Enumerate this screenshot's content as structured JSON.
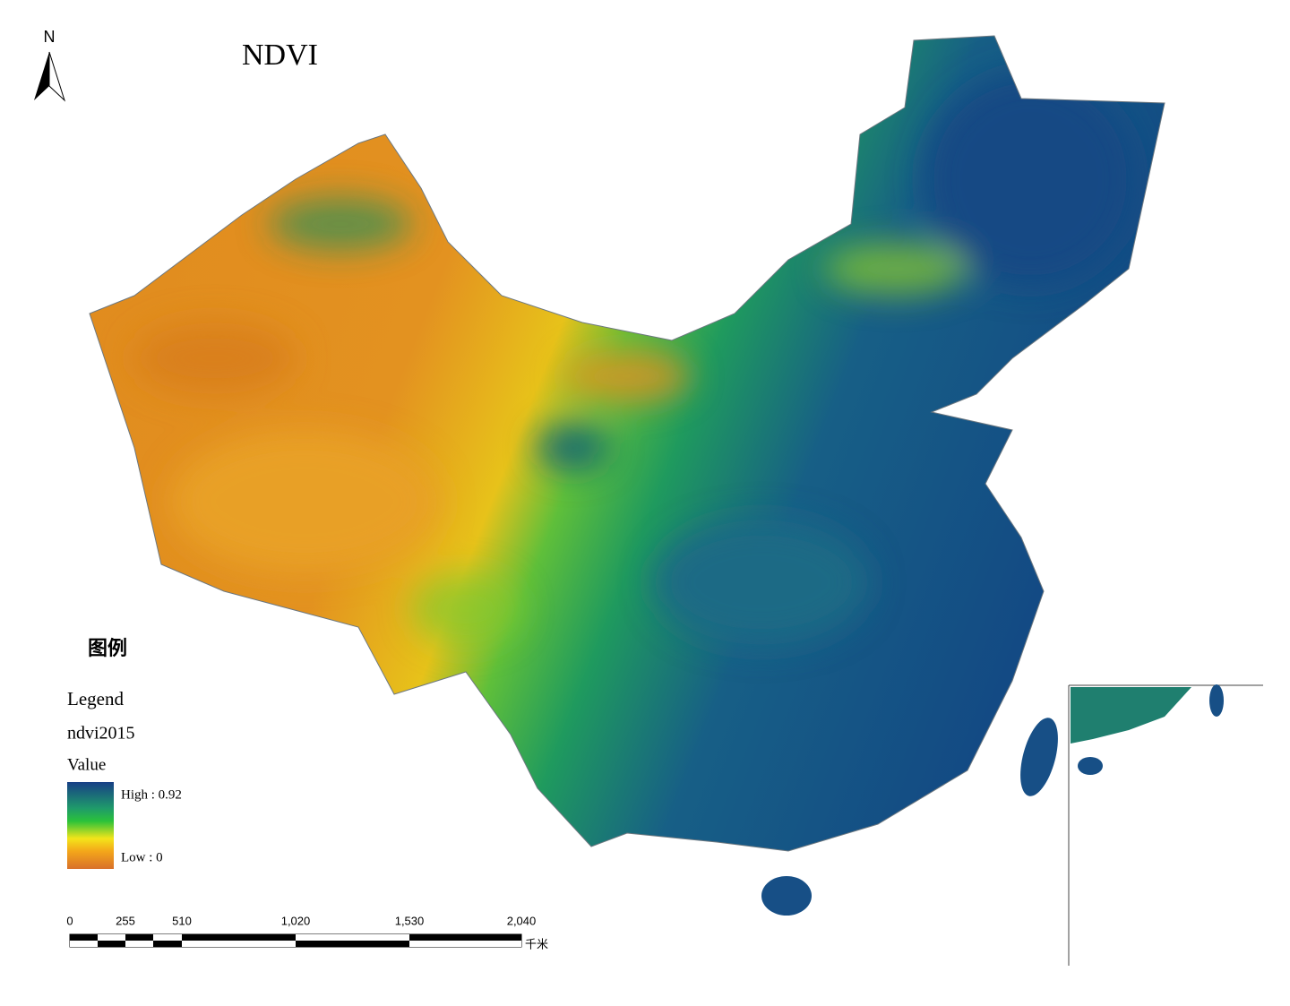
{
  "north": "N",
  "title": "NDVI",
  "legend": {
    "heading": "图例",
    "title": "Legend",
    "layer": "ndvi2015",
    "field": "Value",
    "high": "High : 0.92",
    "low": "Low : 0"
  },
  "scale_bar": {
    "labels": [
      "0",
      "255",
      "510",
      "1,020",
      "1,530",
      "2,040"
    ],
    "unit": "千米"
  }
}
